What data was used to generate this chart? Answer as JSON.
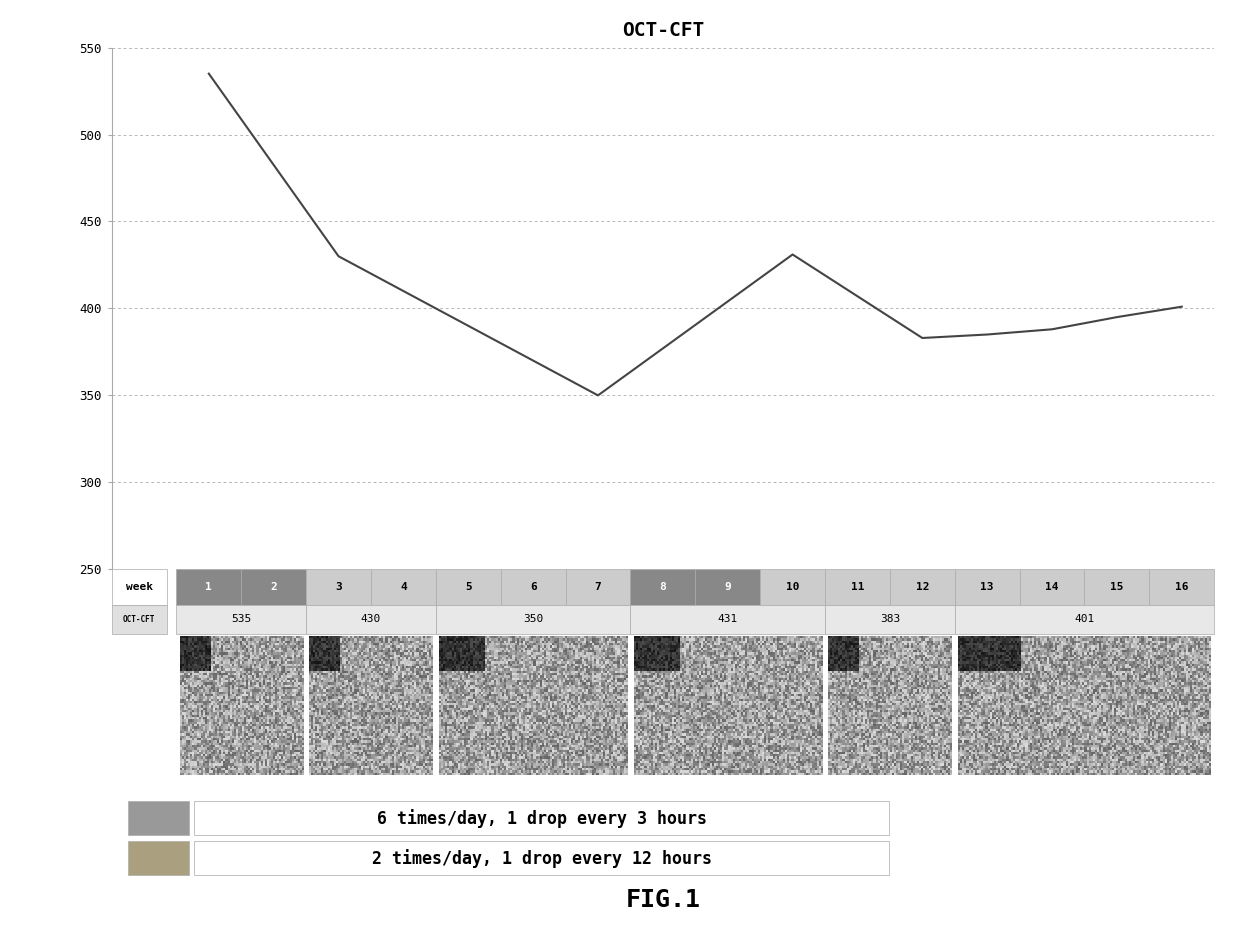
{
  "title": "OCT-CFT",
  "fig_label": "FIG.1",
  "line_x": [
    1,
    3,
    7,
    10,
    12,
    13,
    14,
    15,
    16
  ],
  "line_y": [
    535,
    430,
    350,
    431,
    383,
    385,
    388,
    395,
    401
  ],
  "ylim": [
    250,
    550
  ],
  "yticks": [
    250,
    300,
    350,
    400,
    450,
    500,
    550
  ],
  "highlighted_weeks_dark": [
    1,
    2,
    8,
    9
  ],
  "groups": [
    [
      1,
      2,
      "535"
    ],
    [
      3,
      4,
      "430"
    ],
    [
      5,
      7,
      "350"
    ],
    [
      8,
      10,
      "431"
    ],
    [
      11,
      12,
      "383"
    ],
    [
      13,
      16,
      "401"
    ]
  ],
  "legend_text1": "6 times/day, 1 drop every 3 hours",
  "legend_text2": "2 times/day, 1 drop every 12 hours",
  "legend_color1": "#999999",
  "legend_color2": "#aaa080",
  "line_color": "#444444",
  "grid_color": "#999999",
  "background_color": "#ffffff"
}
